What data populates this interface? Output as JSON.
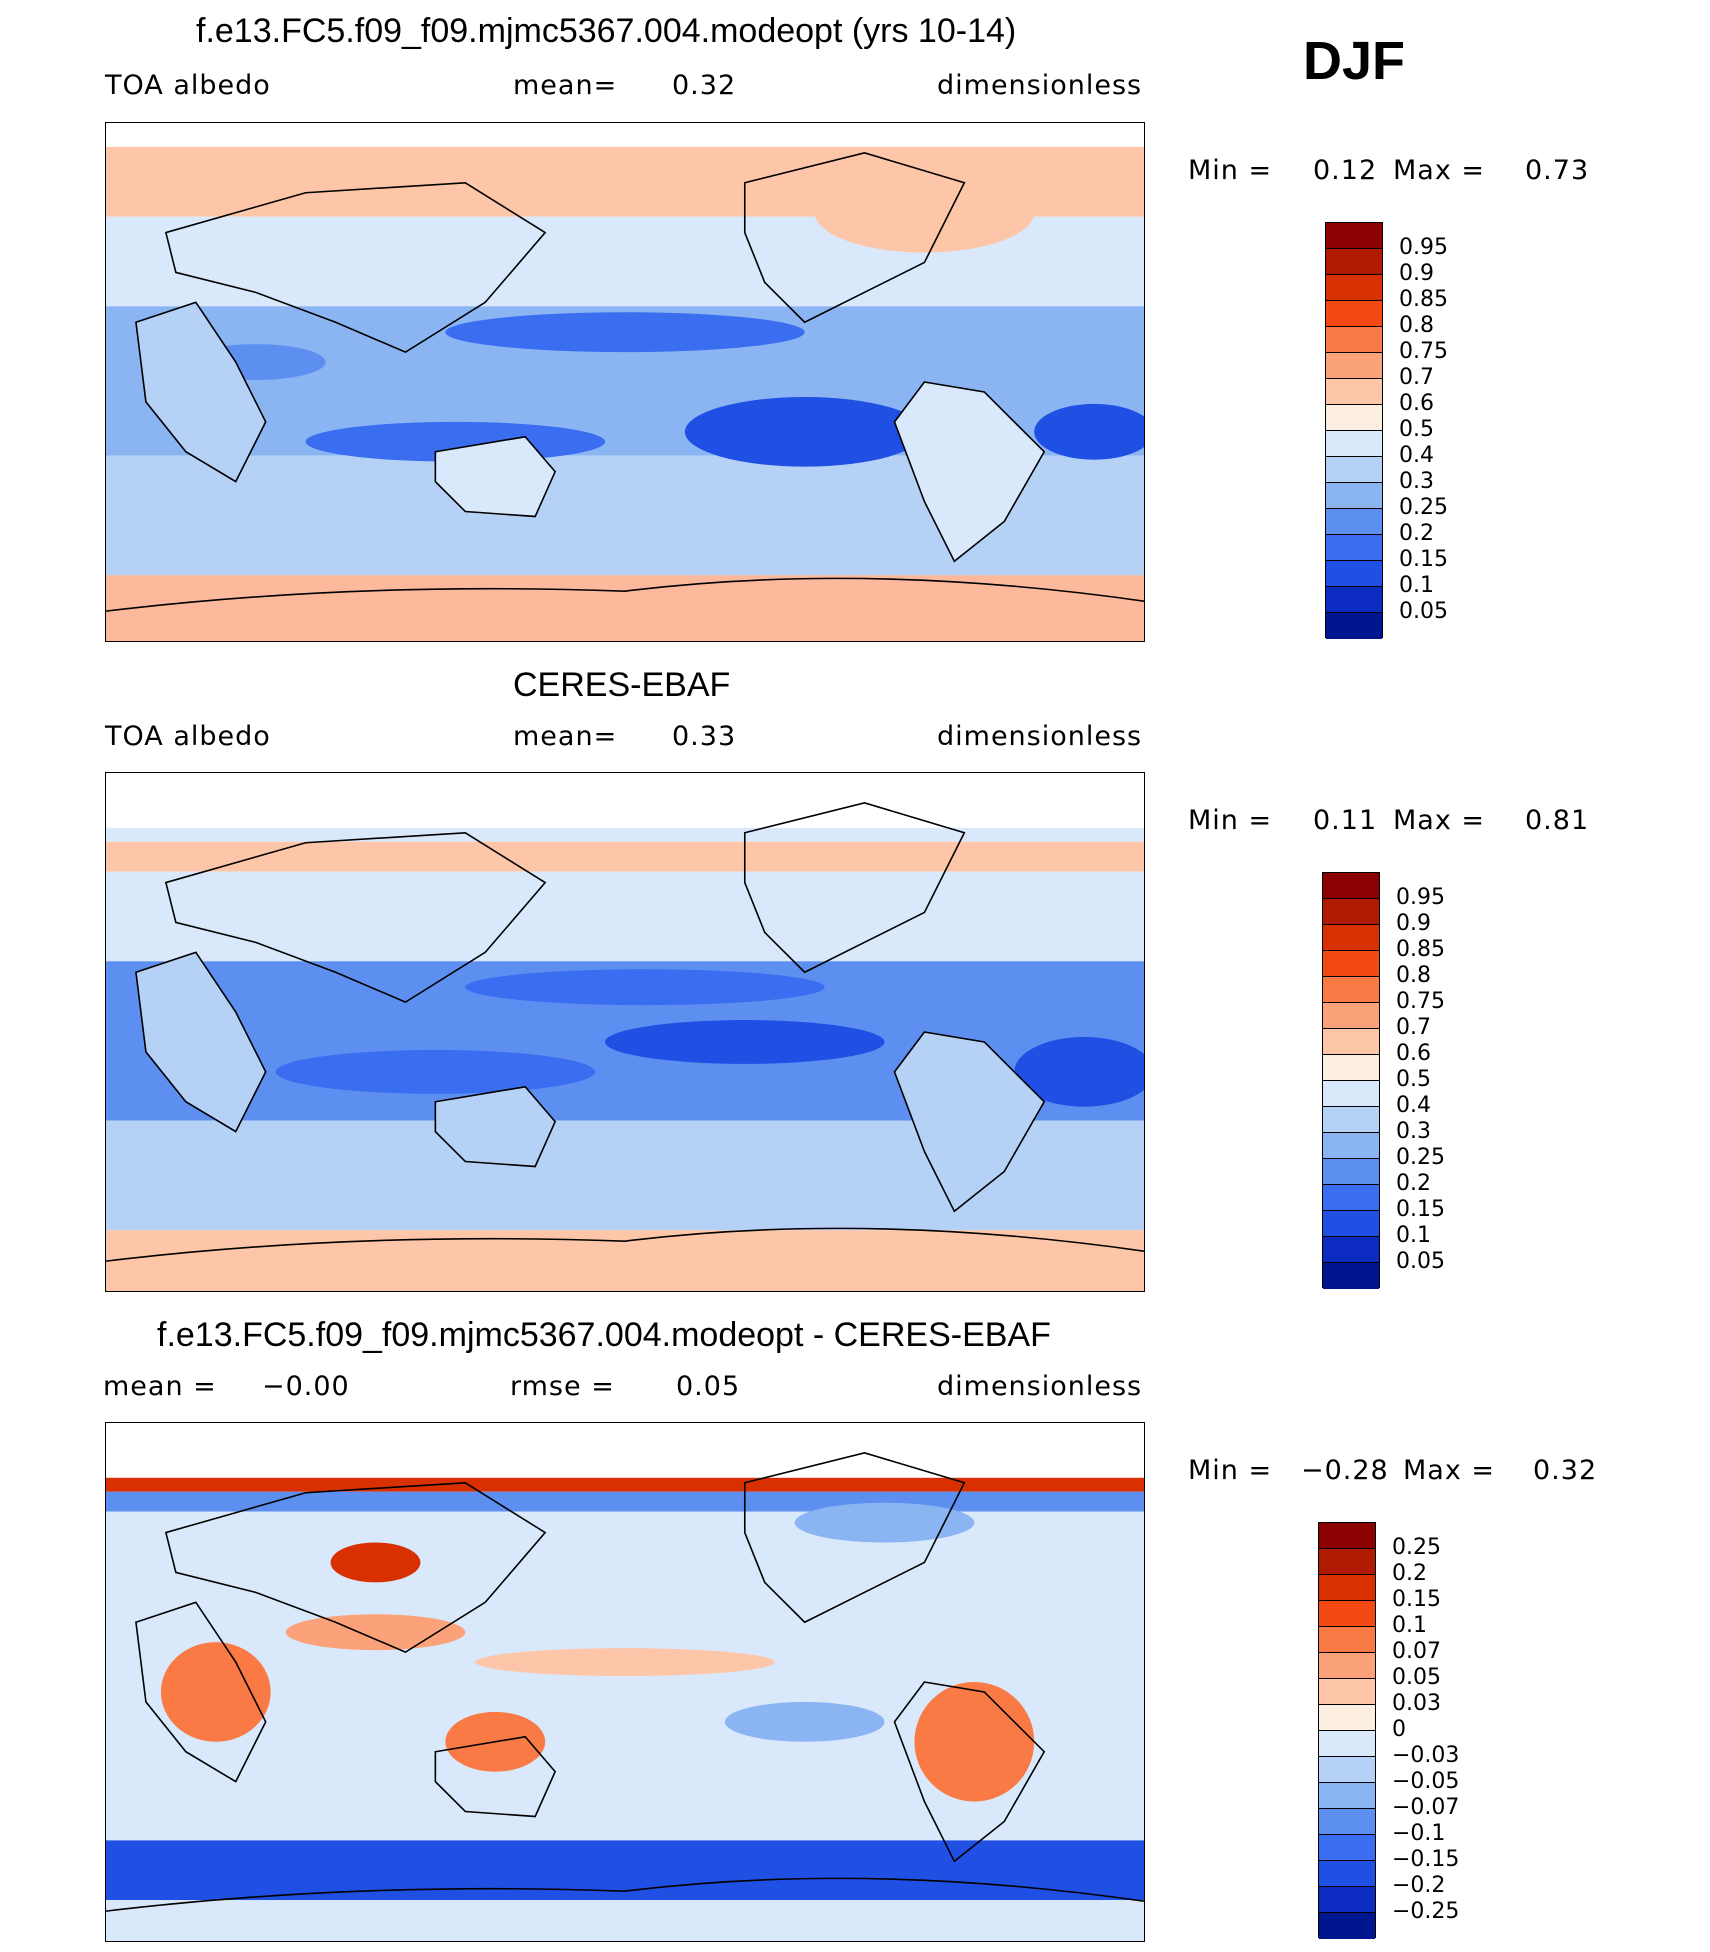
{
  "season": "DJF",
  "panels": [
    {
      "title": "f.e13.FC5.f09_f09.mjmc5367.004.modeopt (yrs 10-14)",
      "left_label": "TOA albedo",
      "center_key": "mean=",
      "center_value": "0.32",
      "right_label": "dimensionless",
      "min_label": "Min =",
      "min_value": "0.12",
      "max_label": "Max =",
      "max_value": "0.73",
      "colorbar_levels": [
        "0.95",
        "0.9",
        "0.85",
        "0.8",
        "0.75",
        "0.7",
        "0.6",
        "0.5",
        "0.4",
        "0.3",
        "0.25",
        "0.2",
        "0.15",
        "0.1",
        "0.05"
      ],
      "colorbar_colors": [
        "#8b0000",
        "#b01a00",
        "#d83000",
        "#f24a12",
        "#fa7a45",
        "#fca27a",
        "#fdc6a8",
        "#fdeee2",
        "#d9e9fb",
        "#b5d1f6",
        "#8ab5f2",
        "#5d8ff0",
        "#3a6df0",
        "#1f4fe3",
        "#0b2bc1",
        "#001590"
      ]
    },
    {
      "title": "CERES-EBAF",
      "left_label": "TOA albedo",
      "center_key": "mean=",
      "center_value": "0.33",
      "right_label": "dimensionless",
      "min_label": "Min =",
      "min_value": "0.11",
      "max_label": "Max =",
      "max_value": "0.81",
      "colorbar_levels": [
        "0.95",
        "0.9",
        "0.85",
        "0.8",
        "0.75",
        "0.7",
        "0.6",
        "0.5",
        "0.4",
        "0.3",
        "0.25",
        "0.2",
        "0.15",
        "0.1",
        "0.05"
      ],
      "colorbar_colors": [
        "#8b0000",
        "#b01a00",
        "#d83000",
        "#f24a12",
        "#fa7a45",
        "#fca27a",
        "#fdc6a8",
        "#fdeee2",
        "#d9e9fb",
        "#b5d1f6",
        "#8ab5f2",
        "#5d8ff0",
        "#3a6df0",
        "#1f4fe3",
        "#0b2bc1",
        "#001590"
      ]
    },
    {
      "title": "f.e13.FC5.f09_f09.mjmc5367.004.modeopt - CERES-EBAF",
      "left_label": "mean =",
      "left_value": "−0.00",
      "center_key": "rmse =",
      "center_value": "0.05",
      "right_label": "dimensionless",
      "min_label": "Min =",
      "min_value": "−0.28",
      "max_label": "Max =",
      "max_value": "0.32",
      "colorbar_levels": [
        "0.25",
        "0.2",
        "0.15",
        "0.1",
        "0.07",
        "0.05",
        "0.03",
        "0",
        "−0.03",
        "−0.05",
        "−0.07",
        "−0.1",
        "−0.15",
        "−0.2",
        "−0.25"
      ],
      "colorbar_colors": [
        "#8b0000",
        "#b01a00",
        "#d83000",
        "#f24a12",
        "#fa7a45",
        "#fca27a",
        "#fdc6a8",
        "#fdeee2",
        "#d9e9fb",
        "#b5d1f6",
        "#8ab5f2",
        "#5d8ff0",
        "#3a6df0",
        "#1f4fe3",
        "#0b2bc1",
        "#001590"
      ]
    }
  ]
}
